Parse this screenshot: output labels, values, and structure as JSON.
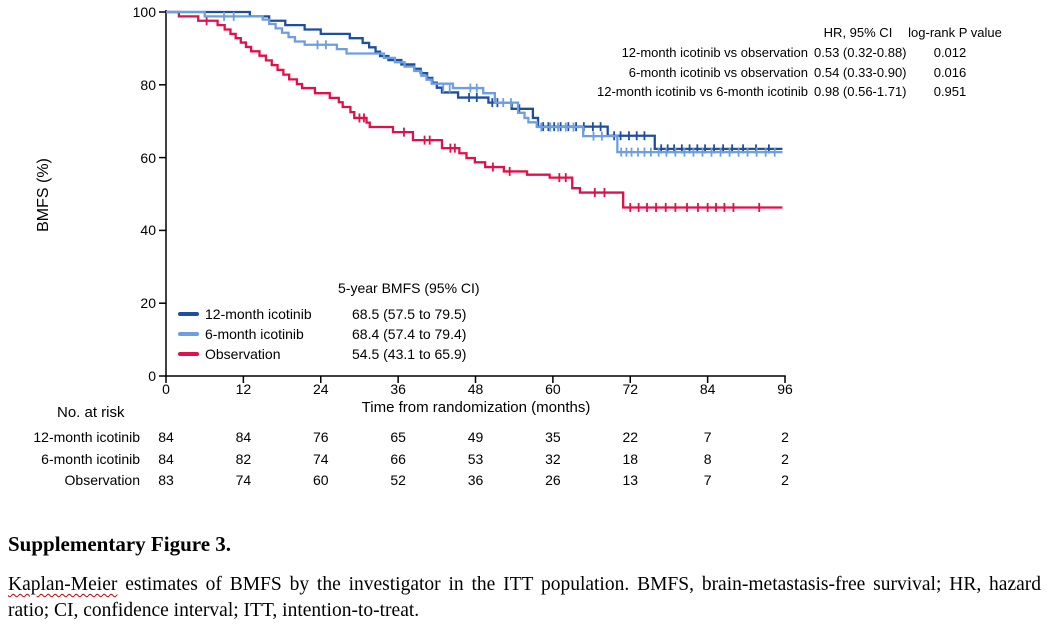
{
  "chart_data": {
    "type": "line",
    "subtype": "kaplan-meier-step",
    "xlabel": "Time from randomization (months)",
    "ylabel": "BMFS (%)",
    "xlim": [
      0,
      96
    ],
    "ylim": [
      0,
      100
    ],
    "xticks": [
      0,
      12,
      24,
      36,
      48,
      60,
      72,
      84,
      96
    ],
    "yticks": [
      0,
      20,
      40,
      60,
      80,
      100
    ],
    "grid": false,
    "series": [
      {
        "name": "12-month icotinib",
        "color": "#1e4f9f",
        "end": 95.6,
        "points": [
          [
            0,
            100
          ],
          [
            13,
            98.8
          ],
          [
            16,
            97.6
          ],
          [
            18.5,
            96.4
          ],
          [
            21.5,
            95.2
          ],
          [
            24,
            94
          ],
          [
            28.5,
            92.8
          ],
          [
            30.5,
            91.5
          ],
          [
            31.5,
            90.3
          ],
          [
            32.5,
            89.1
          ],
          [
            33.2,
            87.9
          ],
          [
            34.5,
            86.8
          ],
          [
            36.5,
            85.6
          ],
          [
            38.5,
            84.4
          ],
          [
            39.5,
            83.2
          ],
          [
            40.5,
            81.9
          ],
          [
            41.3,
            80.6
          ],
          [
            42,
            79.2
          ],
          [
            42.8,
            77.9
          ],
          [
            45.3,
            76.5
          ],
          [
            50,
            75.1
          ],
          [
            53.6,
            73.4
          ],
          [
            56.9,
            70.9
          ],
          [
            57.7,
            68.5
          ],
          [
            68.5,
            66
          ],
          [
            75.8,
            62.4
          ]
        ],
        "censors": [
          [
            47,
            76.5
          ],
          [
            48.2,
            76.5
          ],
          [
            50.6,
            75.1
          ],
          [
            51.4,
            75.1
          ],
          [
            54.8,
            73.4
          ],
          [
            58.5,
            68.5
          ],
          [
            59.3,
            68.5
          ],
          [
            60.2,
            68.5
          ],
          [
            61.2,
            68.5
          ],
          [
            62.4,
            68.5
          ],
          [
            63.6,
            68.5
          ],
          [
            64.8,
            68.5
          ],
          [
            66.2,
            68.5
          ],
          [
            67.4,
            68.5
          ],
          [
            69.5,
            66
          ],
          [
            70.5,
            66
          ],
          [
            71.8,
            66
          ],
          [
            73,
            66
          ],
          [
            74.2,
            66
          ],
          [
            76.8,
            62.4
          ],
          [
            77.8,
            62.4
          ],
          [
            78.8,
            62.4
          ],
          [
            80,
            62.4
          ],
          [
            81.2,
            62.4
          ],
          [
            82.4,
            62.4
          ],
          [
            83.6,
            62.4
          ],
          [
            85,
            62.4
          ],
          [
            86.4,
            62.4
          ],
          [
            87.8,
            62.4
          ],
          [
            89.5,
            62.4
          ],
          [
            91.5,
            62.4
          ],
          [
            93.5,
            62.4
          ]
        ]
      },
      {
        "name": "6-month icotinib",
        "color": "#6d9ee3",
        "end": 95.6,
        "points": [
          [
            0,
            100
          ],
          [
            6,
            98.8
          ],
          [
            15,
            97.9
          ],
          [
            16,
            96.7
          ],
          [
            17,
            95.5
          ],
          [
            18,
            94.3
          ],
          [
            19,
            93.1
          ],
          [
            20,
            91.9
          ],
          [
            21.5,
            91
          ],
          [
            26.5,
            89.8
          ],
          [
            28,
            88.6
          ],
          [
            33.8,
            87.4
          ],
          [
            35.5,
            86.2
          ],
          [
            37,
            85
          ],
          [
            38.5,
            83.8
          ],
          [
            39.6,
            82.5
          ],
          [
            40.4,
            81.4
          ],
          [
            41.2,
            80.3
          ],
          [
            44.5,
            79.1
          ],
          [
            49.2,
            77.7
          ],
          [
            51,
            75.1
          ],
          [
            54.6,
            72.3
          ],
          [
            55.6,
            70.9
          ],
          [
            56.2,
            69.7
          ],
          [
            57.5,
            68.4
          ],
          [
            64.7,
            65.9
          ],
          [
            70,
            61.5
          ]
        ],
        "censors": [
          [
            9,
            98.8
          ],
          [
            10.5,
            98.8
          ],
          [
            23.5,
            91
          ],
          [
            24.8,
            91
          ],
          [
            43,
            79.1
          ],
          [
            44,
            79.1
          ],
          [
            47.2,
            79.1
          ],
          [
            48.2,
            79.1
          ],
          [
            52.3,
            75.1
          ],
          [
            53.5,
            75.1
          ],
          [
            58.2,
            68.4
          ],
          [
            59.6,
            68.4
          ],
          [
            60.8,
            68.4
          ],
          [
            62,
            68.4
          ],
          [
            63.2,
            68.4
          ],
          [
            66.3,
            65.9
          ],
          [
            67.6,
            65.9
          ],
          [
            70.6,
            61.5
          ],
          [
            71.4,
            61.5
          ],
          [
            72.2,
            61.5
          ],
          [
            73.2,
            61.5
          ],
          [
            74.2,
            61.5
          ],
          [
            75.2,
            61.5
          ],
          [
            76.4,
            61.5
          ],
          [
            77.6,
            61.5
          ],
          [
            79,
            61.5
          ],
          [
            80.4,
            61.5
          ],
          [
            81.8,
            61.5
          ],
          [
            83.2,
            61.5
          ],
          [
            84.6,
            61.5
          ],
          [
            86,
            61.5
          ],
          [
            87.4,
            61.5
          ],
          [
            88.8,
            61.5
          ],
          [
            90.2,
            61.5
          ],
          [
            91.6,
            61.5
          ],
          [
            93,
            61.5
          ],
          [
            94.4,
            61.5
          ]
        ]
      },
      {
        "name": "Observation",
        "color": "#e0104a",
        "end": 95.6,
        "points": [
          [
            0,
            100
          ],
          [
            2,
            98.8
          ],
          [
            5,
            97.6
          ],
          [
            8,
            96.4
          ],
          [
            9.1,
            95.2
          ],
          [
            10,
            94
          ],
          [
            10.8,
            92.8
          ],
          [
            11.6,
            91.6
          ],
          [
            12.4,
            90.4
          ],
          [
            13.2,
            89.2
          ],
          [
            14.5,
            88
          ],
          [
            15.5,
            86.7
          ],
          [
            16.4,
            85.4
          ],
          [
            17.3,
            84.1
          ],
          [
            18.2,
            82.8
          ],
          [
            19.1,
            81.5
          ],
          [
            20.3,
            80.2
          ],
          [
            21.1,
            79.1
          ],
          [
            23.1,
            77.7
          ],
          [
            25.4,
            76.4
          ],
          [
            26.8,
            75.2
          ],
          [
            27.4,
            73.9
          ],
          [
            28.6,
            72.5
          ],
          [
            29.2,
            70.9
          ],
          [
            31.1,
            69.6
          ],
          [
            31.6,
            68.4
          ],
          [
            35.2,
            67
          ],
          [
            38.3,
            64.8
          ],
          [
            42.8,
            62.6
          ],
          [
            45.5,
            61.2
          ],
          [
            46.6,
            59.9
          ],
          [
            47.9,
            58.7
          ],
          [
            49.5,
            57.4
          ],
          [
            52.4,
            56.2
          ],
          [
            56,
            55.3
          ],
          [
            59.5,
            54.5
          ],
          [
            63,
            51.6
          ],
          [
            64.2,
            50.4
          ],
          [
            70.9,
            46.3
          ]
        ],
        "censors": [
          [
            6.3,
            97.6
          ],
          [
            30,
            70.9
          ],
          [
            30.7,
            70.9
          ],
          [
            36.9,
            67
          ],
          [
            40.1,
            64.8
          ],
          [
            40.9,
            64.8
          ],
          [
            44.1,
            62.6
          ],
          [
            44.8,
            62.6
          ],
          [
            50.7,
            57.4
          ],
          [
            53.3,
            56.2
          ],
          [
            61,
            54.5
          ],
          [
            62,
            54.5
          ],
          [
            66.5,
            50.4
          ],
          [
            68,
            50.4
          ],
          [
            72,
            46.3
          ],
          [
            73.3,
            46.3
          ],
          [
            74.6,
            46.3
          ],
          [
            76,
            46.3
          ],
          [
            77.5,
            46.3
          ],
          [
            79,
            46.3
          ],
          [
            80.8,
            46.3
          ],
          [
            82.5,
            46.3
          ],
          [
            84,
            46.3
          ],
          [
            85.3,
            46.3
          ],
          [
            86.6,
            46.3
          ],
          [
            88,
            46.3
          ],
          [
            92,
            46.3
          ]
        ]
      }
    ]
  },
  "axes": {
    "y_title": "BMFS (%)",
    "x_title": "Time from randomization (months)"
  },
  "stats": {
    "header_hr": "HR, 95% CI",
    "header_p": "log-rank P value",
    "rows": [
      {
        "label": "12-month icotinib vs observation",
        "hr": "0.53 (0.32-0.88)",
        "p": "0.012"
      },
      {
        "label": "6-month icotinib vs observation",
        "hr": "0.54 (0.33-0.90)",
        "p": "0.016"
      },
      {
        "label": "12-month icotinib vs 6-month icotinib",
        "hr": "0.98 (0.56-1.71)",
        "p": "0.951"
      }
    ]
  },
  "legend": {
    "header": "5-year BMFS (95% CI)",
    "rows": [
      {
        "label": "12-month icotinib",
        "value": "68.5 (57.5 to 79.5)",
        "color": "#1e4f9f"
      },
      {
        "label": "6-month icotinib",
        "value": "68.4 (57.4 to 79.4)",
        "color": "#6d9ee3"
      },
      {
        "label": "Observation",
        "value": "54.5 (43.1 to 65.9)",
        "color": "#e0104a"
      }
    ]
  },
  "risk_table": {
    "title": "No. at risk",
    "rows": [
      {
        "label": "12-month icotinib",
        "counts": [
          "84",
          "84",
          "76",
          "65",
          "49",
          "35",
          "22",
          "7",
          "2"
        ]
      },
      {
        "label": "6-month icotinib",
        "counts": [
          "84",
          "82",
          "74",
          "66",
          "53",
          "32",
          "18",
          "8",
          "2"
        ]
      },
      {
        "label": "Observation",
        "counts": [
          "83",
          "74",
          "60",
          "52",
          "36",
          "26",
          "13",
          "7",
          "2"
        ]
      }
    ]
  },
  "caption": {
    "title": "Supplementary Figure 3.",
    "spellchecked_word": "Kaplan-Meier",
    "body_rest": " estimates of BMFS by the investigator in the ITT population. BMFS, brain-metastasis-free survival; HR, hazard ratio; CI, confidence interval; ITT, intention-to-treat."
  }
}
